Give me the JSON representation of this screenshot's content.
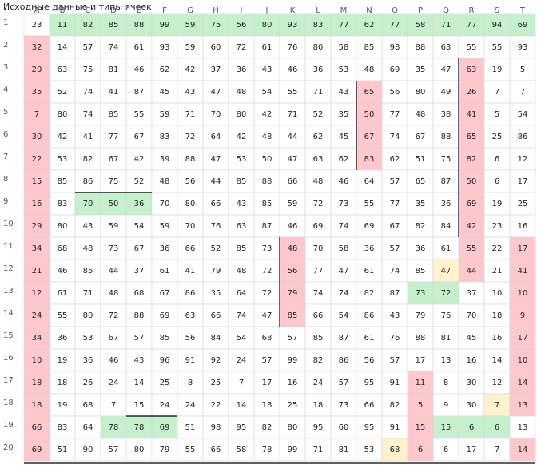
{
  "header": {
    "title": "Исходные данные и типы ячеек"
  },
  "table": {
    "columns": [
      "A",
      "B",
      "C",
      "D",
      "E",
      "F",
      "G",
      "H",
      "I",
      "J",
      "K",
      "L",
      "M",
      "N",
      "O",
      "P",
      "Q",
      "R",
      "S",
      "T"
    ],
    "row_labels": [
      "1",
      "2",
      "3",
      "4",
      "5",
      "6",
      "7",
      "8",
      "9",
      "10",
      "11",
      "12",
      "13",
      "14",
      "15",
      "16",
      "17",
      "18",
      "19",
      "20"
    ],
    "rows": [
      [
        "23",
        "11",
        "82",
        "85",
        "88",
        "99",
        "59",
        "75",
        "56",
        "80",
        "93",
        "83",
        "77",
        "62",
        "77",
        "58",
        "71",
        "77",
        "94",
        "69"
      ],
      [
        "32",
        "14",
        "57",
        "74",
        "61",
        "93",
        "59",
        "60",
        "72",
        "61",
        "76",
        "80",
        "58",
        "85",
        "98",
        "88",
        "63",
        "55",
        "55",
        "93"
      ],
      [
        "20",
        "63",
        "75",
        "81",
        "46",
        "62",
        "42",
        "37",
        "36",
        "43",
        "46",
        "36",
        "53",
        "48",
        "69",
        "35",
        "47",
        "63",
        "19",
        "5"
      ],
      [
        "35",
        "52",
        "74",
        "41",
        "87",
        "45",
        "43",
        "47",
        "48",
        "54",
        "55",
        "71",
        "43",
        "65",
        "56",
        "80",
        "49",
        "26",
        "7",
        "7"
      ],
      [
        "7",
        "80",
        "74",
        "85",
        "55",
        "59",
        "71",
        "70",
        "80",
        "42",
        "71",
        "52",
        "35",
        "50",
        "77",
        "48",
        "38",
        "41",
        "5",
        "54"
      ],
      [
        "30",
        "42",
        "41",
        "77",
        "67",
        "83",
        "72",
        "64",
        "42",
        "48",
        "44",
        "62",
        "45",
        "67",
        "74",
        "67",
        "88",
        "65",
        "25",
        "86"
      ],
      [
        "22",
        "53",
        "82",
        "67",
        "42",
        "39",
        "88",
        "47",
        "53",
        "50",
        "47",
        "63",
        "62",
        "83",
        "62",
        "51",
        "75",
        "82",
        "6",
        "12"
      ],
      [
        "15",
        "85",
        "86",
        "75",
        "52",
        "48",
        "56",
        "44",
        "85",
        "88",
        "66",
        "48",
        "46",
        "64",
        "57",
        "65",
        "87",
        "50",
        "6",
        "17"
      ],
      [
        "16",
        "83",
        "70",
        "50",
        "36",
        "70",
        "80",
        "66",
        "43",
        "85",
        "59",
        "72",
        "73",
        "55",
        "77",
        "35",
        "36",
        "69",
        "19",
        "25"
      ],
      [
        "29",
        "80",
        "43",
        "59",
        "54",
        "59",
        "70",
        "76",
        "63",
        "87",
        "46",
        "69",
        "74",
        "69",
        "67",
        "82",
        "84",
        "42",
        "23",
        "16"
      ],
      [
        "34",
        "68",
        "48",
        "73",
        "67",
        "36",
        "66",
        "52",
        "85",
        "73",
        "48",
        "70",
        "58",
        "36",
        "57",
        "36",
        "61",
        "55",
        "22",
        "17"
      ],
      [
        "21",
        "46",
        "85",
        "44",
        "37",
        "61",
        "41",
        "79",
        "48",
        "72",
        "56",
        "77",
        "47",
        "61",
        "74",
        "85",
        "47",
        "44",
        "21",
        "41"
      ],
      [
        "12",
        "61",
        "71",
        "48",
        "68",
        "67",
        "86",
        "35",
        "64",
        "72",
        "79",
        "74",
        "74",
        "82",
        "87",
        "73",
        "72",
        "37",
        "10",
        "10"
      ],
      [
        "24",
        "55",
        "80",
        "72",
        "88",
        "69",
        "63",
        "66",
        "74",
        "47",
        "85",
        "66",
        "54",
        "86",
        "43",
        "79",
        "76",
        "70",
        "18",
        "9"
      ],
      [
        "34",
        "36",
        "53",
        "67",
        "57",
        "85",
        "56",
        "84",
        "54",
        "68",
        "57",
        "85",
        "87",
        "61",
        "76",
        "88",
        "81",
        "45",
        "16",
        "17"
      ],
      [
        "10",
        "19",
        "36",
        "46",
        "43",
        "96",
        "91",
        "92",
        "24",
        "57",
        "99",
        "82",
        "86",
        "56",
        "57",
        "17",
        "13",
        "16",
        "14",
        "10"
      ],
      [
        "18",
        "18",
        "26",
        "24",
        "14",
        "25",
        "8",
        "25",
        "7",
        "17",
        "16",
        "24",
        "57",
        "95",
        "91",
        "11",
        "8",
        "30",
        "12",
        "14"
      ],
      [
        "18",
        "19",
        "68",
        "7",
        "15",
        "24",
        "24",
        "22",
        "14",
        "18",
        "25",
        "18",
        "73",
        "66",
        "82",
        "5",
        "9",
        "30",
        "7",
        "13"
      ],
      [
        "66",
        "83",
        "64",
        "78",
        "78",
        "69",
        "51",
        "98",
        "95",
        "82",
        "80",
        "95",
        "60",
        "95",
        "91",
        "15",
        "15",
        "6",
        "6",
        "13"
      ],
      [
        "69",
        "51",
        "90",
        "57",
        "80",
        "79",
        "55",
        "66",
        "58",
        "78",
        "99",
        "71",
        "81",
        "53",
        "68",
        "6",
        "6",
        "17",
        "7",
        "14"
      ]
    ]
  }
}
